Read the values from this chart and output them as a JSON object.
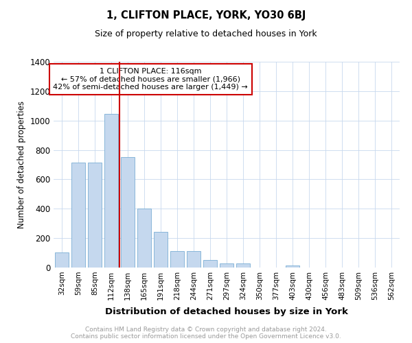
{
  "title": "1, CLIFTON PLACE, YORK, YO30 6BJ",
  "subtitle": "Size of property relative to detached houses in York",
  "xlabel": "Distribution of detached houses by size in York",
  "ylabel": "Number of detached properties",
  "bar_color": "#c5d8ee",
  "bar_edge_color": "#7aadd4",
  "grid_color": "#c8d8ee",
  "background_color": "#ffffff",
  "annotation_box_color": "#cc0000",
  "vline_color": "#cc0000",
  "vline_x_index": 3,
  "annotation_title": "1 CLIFTON PLACE: 116sqm",
  "annotation_line2": "← 57% of detached houses are smaller (1,966)",
  "annotation_line3": "42% of semi-detached houses are larger (1,449) →",
  "footer_line1": "Contains HM Land Registry data © Crown copyright and database right 2024.",
  "footer_line2": "Contains public sector information licensed under the Open Government Licence v3.0.",
  "categories": [
    "32sqm",
    "59sqm",
    "85sqm",
    "112sqm",
    "138sqm",
    "165sqm",
    "191sqm",
    "218sqm",
    "244sqm",
    "271sqm",
    "297sqm",
    "324sqm",
    "350sqm",
    "377sqm",
    "403sqm",
    "430sqm",
    "456sqm",
    "483sqm",
    "509sqm",
    "536sqm",
    "562sqm"
  ],
  "values": [
    105,
    715,
    715,
    1045,
    750,
    400,
    245,
    110,
    110,
    50,
    30,
    30,
    0,
    0,
    15,
    0,
    0,
    0,
    0,
    0,
    0
  ],
  "ylim": [
    0,
    1400
  ],
  "yticks": [
    0,
    200,
    400,
    600,
    800,
    1000,
    1200,
    1400
  ]
}
